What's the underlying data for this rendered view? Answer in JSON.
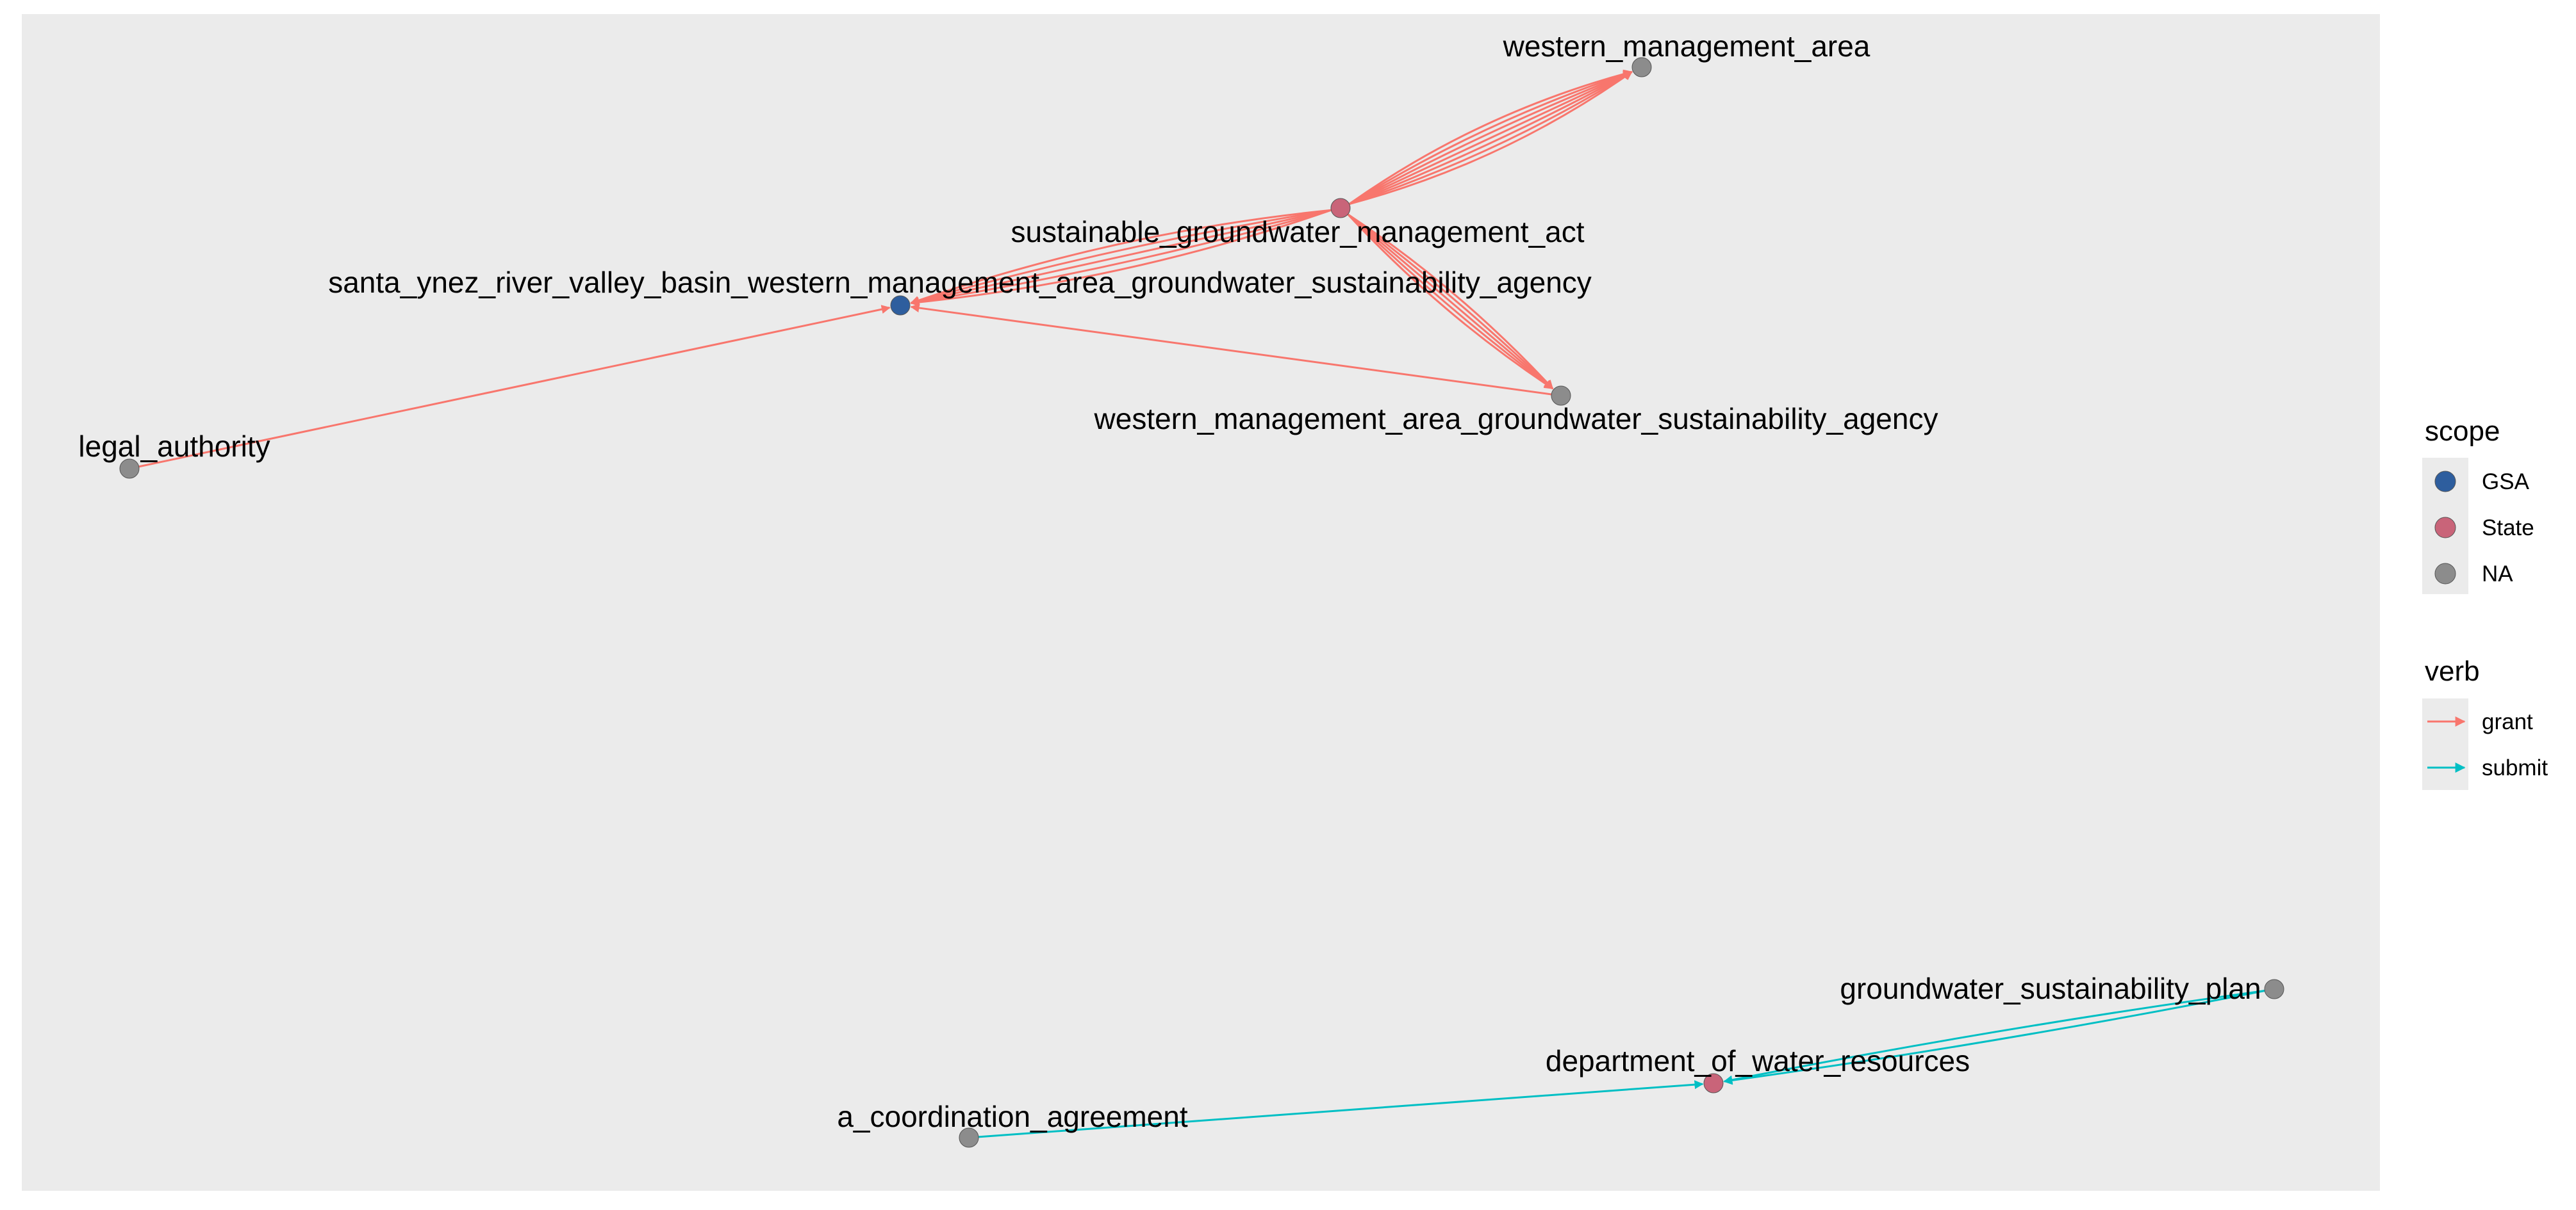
{
  "colors": {
    "panel_background": "#EBEBEB",
    "legend_key_background": "#EBEBEB",
    "grant": "#F8766D",
    "submit": "#00BFC4",
    "GSA": "#2E5E9E",
    "State": "#C96479",
    "NA": "#8C8C8C"
  },
  "graph": {
    "nodes": [
      {
        "id": "western_management_area",
        "label": "western_management_area",
        "scope": "NA"
      },
      {
        "id": "sgma",
        "label": "sustainable_groundwater_management_act",
        "scope": "State"
      },
      {
        "id": "santa_ynez",
        "label": "santa_ynez_river_valley_basin_western_management_area_groundwater_sustainability_agency",
        "scope": "GSA"
      },
      {
        "id": "wma_gsa",
        "label": "western_management_area_groundwater_sustainability_agency",
        "scope": "NA"
      },
      {
        "id": "legal_authority",
        "label": "legal_authority",
        "scope": "NA"
      },
      {
        "id": "gsp",
        "label": "groundwater_sustainability_plan",
        "scope": "NA"
      },
      {
        "id": "dwr",
        "label": "department_of_water_resources",
        "scope": "State"
      },
      {
        "id": "coordination",
        "label": "a_coordination_agreement",
        "scope": "NA"
      }
    ],
    "edges": [
      {
        "from": "sgma",
        "to": "western_management_area",
        "verb": "grant",
        "count": 7
      },
      {
        "from": "sgma",
        "to": "santa_ynez",
        "verb": "grant",
        "count": 5
      },
      {
        "from": "sgma",
        "to": "wma_gsa",
        "verb": "grant",
        "count": 5
      },
      {
        "from": "wma_gsa",
        "to": "santa_ynez",
        "verb": "grant",
        "count": 1
      },
      {
        "from": "legal_authority",
        "to": "santa_ynez",
        "verb": "grant",
        "count": 1
      },
      {
        "from": "gsp",
        "to": "dwr",
        "verb": "submit",
        "count": 2
      },
      {
        "from": "coordination",
        "to": "dwr",
        "verb": "submit",
        "count": 1
      }
    ]
  },
  "legend": {
    "scope": {
      "title": "scope",
      "items": [
        {
          "label": "GSA",
          "color_key": "GSA"
        },
        {
          "label": "State",
          "color_key": "State"
        },
        {
          "label": "NA",
          "color_key": "NA"
        }
      ]
    },
    "verb": {
      "title": "verb",
      "items": [
        {
          "label": "grant",
          "color_key": "grant"
        },
        {
          "label": "submit",
          "color_key": "submit"
        }
      ]
    }
  }
}
